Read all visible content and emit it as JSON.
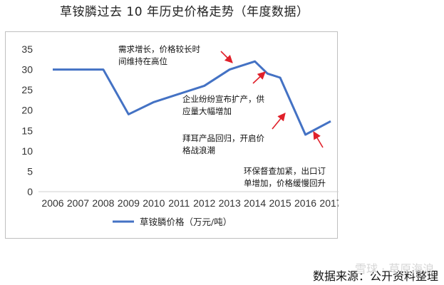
{
  "page_title": "草铵膦过去 10 年历史价格走势（年度数据）",
  "source": "数据来源：公开资料整理",
  "watermark": "雪球 · 草原海浪",
  "chart_data": {
    "type": "line",
    "title": "",
    "xlabel": "",
    "ylabel": "",
    "categories": [
      "2006",
      "2007",
      "2008",
      "2009",
      "2010",
      "2011",
      "2012",
      "2013",
      "2014",
      "2015",
      "2016",
      "2017"
    ],
    "series": [
      {
        "name": "草铵膦价格（万元/吨）",
        "color": "#4472c4",
        "x": [
          2006,
          2007,
          2008,
          2009,
          2010,
          2011,
          2012,
          2013,
          2014,
          2014.5,
          2015,
          2016,
          2017
        ],
        "values": [
          30,
          30,
          30,
          19,
          22,
          24,
          26,
          30,
          32,
          29,
          28,
          14,
          17.3
        ]
      }
    ],
    "ylim": [
      0,
      35
    ],
    "yticks": [
      0,
      5,
      10,
      15,
      20,
      25,
      30,
      35
    ],
    "grid": false,
    "legend": "bottom",
    "annotations": [
      {
        "lines": [
          "需求增长，价格较长时",
          "间维持在高位"
        ],
        "arrow_color": "#e0202a"
      },
      {
        "lines": [
          "企业纷纷宣布扩产，供",
          "应量大幅增加"
        ],
        "arrow_color": "#e0202a"
      },
      {
        "lines": [
          "拜耳产品回归，开启价",
          "格战浪潮"
        ],
        "arrow_color": "#e0202a"
      },
      {
        "lines": [
          "环保督查加紧，出口订",
          "单增加，价格缓慢回升"
        ],
        "arrow_color": "#e0202a"
      }
    ]
  }
}
